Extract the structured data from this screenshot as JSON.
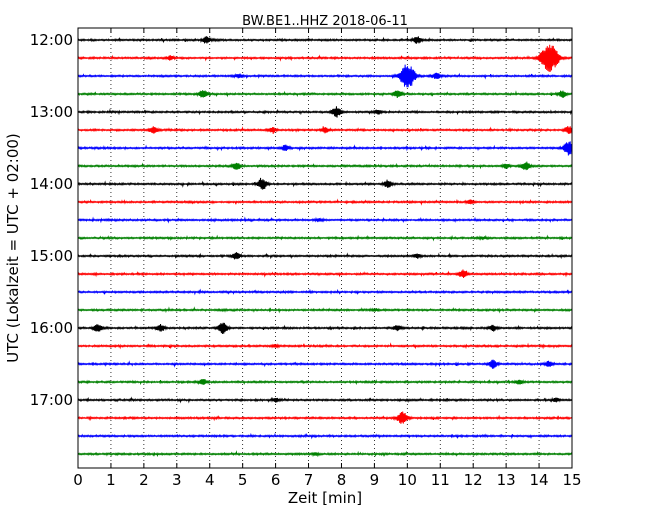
{
  "chart_data": {
    "type": "line",
    "title": "BW.BE1..HHZ 2018-06-11",
    "xlabel": "Zeit  [min]",
    "ylabel": "UTC (Lokalzeit = UTC + 02:00)",
    "xlim": [
      0,
      15
    ],
    "x_ticks": [
      "0",
      "1",
      "2",
      "3",
      "4",
      "5",
      "6",
      "7",
      "8",
      "9",
      "10",
      "11",
      "12",
      "13",
      "14",
      "15"
    ],
    "y_tick_labels": [
      "12:00",
      "13:00",
      "14:00",
      "15:00",
      "16:00",
      "17:00"
    ],
    "grid": "vertical dotted",
    "trace_colors": [
      "#000000",
      "#ff0000",
      "#0000ff",
      "#008000"
    ],
    "series": [
      {
        "start": "12:00",
        "color": "#000000",
        "events": [
          [
            3.9,
            0.5
          ],
          [
            10.3,
            0.5
          ]
        ]
      },
      {
        "start": "12:15",
        "color": "#ff0000",
        "events": [
          [
            2.8,
            0.3
          ],
          [
            14.35,
            2.0
          ],
          [
            14.1,
            0.6
          ]
        ]
      },
      {
        "start": "12:30",
        "color": "#0000ff",
        "events": [
          [
            10.0,
            1.8
          ],
          [
            10.9,
            0.5
          ],
          [
            4.9,
            0.3
          ]
        ]
      },
      {
        "start": "12:45",
        "color": "#008000",
        "events": [
          [
            3.8,
            0.6
          ],
          [
            9.7,
            0.5
          ],
          [
            14.7,
            0.5
          ]
        ]
      },
      {
        "start": "13:00",
        "color": "#000000",
        "events": [
          [
            7.85,
            0.7
          ],
          [
            9.1,
            0.3
          ]
        ]
      },
      {
        "start": "13:15",
        "color": "#ff0000",
        "events": [
          [
            2.3,
            0.5
          ],
          [
            5.9,
            0.4
          ],
          [
            7.5,
            0.4
          ],
          [
            14.9,
            0.5
          ]
        ]
      },
      {
        "start": "13:30",
        "color": "#0000ff",
        "events": [
          [
            6.3,
            0.4
          ],
          [
            14.9,
            1.0
          ]
        ]
      },
      {
        "start": "13:45",
        "color": "#008000",
        "events": [
          [
            4.8,
            0.5
          ],
          [
            13.6,
            0.6
          ],
          [
            13.0,
            0.3
          ]
        ]
      },
      {
        "start": "14:00",
        "color": "#000000",
        "events": [
          [
            5.6,
            0.8
          ],
          [
            9.4,
            0.5
          ]
        ]
      },
      {
        "start": "14:15",
        "color": "#ff0000",
        "events": [
          [
            11.9,
            0.3
          ]
        ]
      },
      {
        "start": "14:30",
        "color": "#0000ff",
        "events": [
          [
            7.3,
            0.2
          ]
        ]
      },
      {
        "start": "14:45",
        "color": "#008000",
        "events": [
          [
            12.3,
            0.2
          ]
        ]
      },
      {
        "start": "15:00",
        "color": "#000000",
        "events": [
          [
            4.8,
            0.5
          ],
          [
            10.3,
            0.3
          ]
        ]
      },
      {
        "start": "15:15",
        "color": "#ff0000",
        "events": [
          [
            11.7,
            0.6
          ]
        ]
      },
      {
        "start": "15:30",
        "color": "#0000ff",
        "events": []
      },
      {
        "start": "15:45",
        "color": "#008000",
        "events": [
          [
            9.0,
            0.2
          ]
        ]
      },
      {
        "start": "16:00",
        "color": "#000000",
        "events": [
          [
            0.6,
            0.6
          ],
          [
            2.5,
            0.5
          ],
          [
            4.4,
            0.8
          ],
          [
            9.7,
            0.4
          ],
          [
            12.6,
            0.4
          ]
        ]
      },
      {
        "start": "16:15",
        "color": "#ff0000",
        "events": [
          [
            6.0,
            0.2
          ]
        ]
      },
      {
        "start": "16:30",
        "color": "#0000ff",
        "events": [
          [
            12.6,
            0.6
          ],
          [
            14.3,
            0.4
          ]
        ]
      },
      {
        "start": "16:45",
        "color": "#008000",
        "events": [
          [
            3.8,
            0.4
          ],
          [
            13.4,
            0.3
          ]
        ]
      },
      {
        "start": "17:00",
        "color": "#000000",
        "events": [
          [
            6.0,
            0.3
          ],
          [
            14.5,
            0.3
          ]
        ]
      },
      {
        "start": "17:15",
        "color": "#ff0000",
        "events": [
          [
            9.85,
            0.9
          ]
        ]
      },
      {
        "start": "17:30",
        "color": "#0000ff",
        "events": []
      },
      {
        "start": "17:45",
        "color": "#008000",
        "events": [
          [
            7.2,
            0.2
          ]
        ]
      }
    ]
  }
}
